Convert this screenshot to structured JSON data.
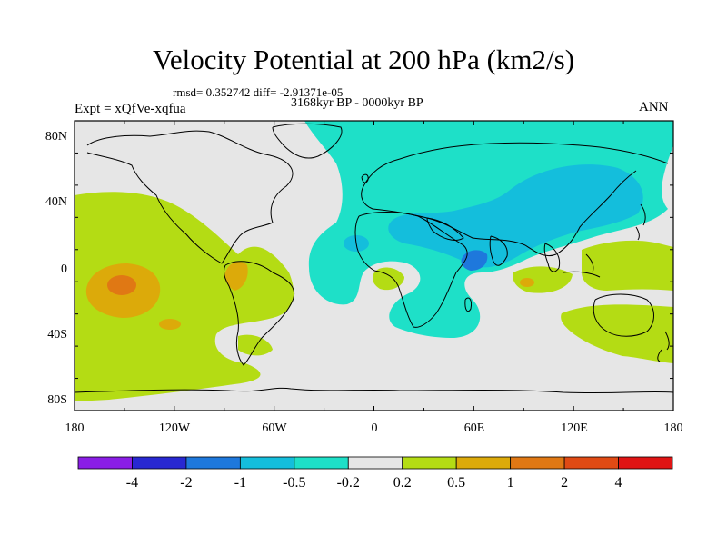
{
  "title": "Velocity Potential at 200 hPa (km2/s)",
  "stats": "rmsd= 0.352742 diff= -2.91371e-05",
  "period": "3168kyr BP - 0000kyr BP",
  "experiment": "Expt = xQfVe-xqfua",
  "season": "ANN",
  "map": {
    "projection": "cylindrical-equidistant",
    "lon_range": [
      -180,
      180
    ],
    "lat_range": [
      -90,
      90
    ],
    "y_tick_labels": [
      "80N",
      "40N",
      "0",
      "40S",
      "80S"
    ],
    "x_tick_labels": [
      "180",
      "120W",
      "60W",
      "0",
      "60E",
      "120E",
      "180"
    ]
  },
  "colorbar": {
    "labels": [
      "-4",
      "-2",
      "-1",
      "-0.5",
      "-0.2",
      "0.2",
      "0.5",
      "1",
      "2",
      "4"
    ],
    "colors": [
      "#8a1ee6",
      "#2828d2",
      "#1e78dc",
      "#14bedc",
      "#1ee0c8",
      "#e6e6e6",
      "#b4dc14",
      "#dcaa0a",
      "#e07814",
      "#e04a14",
      "#e01414"
    ]
  },
  "colors": {
    "neutral": "#e6e6e6",
    "positive_small": "#b4dc14",
    "positive_mid": "#dcaa0a",
    "positive_high": "#e07814",
    "negative_small": "#1ee0c8",
    "negative_mid": "#14bedc",
    "negative_high": "#1e78dc",
    "coast": "#000000"
  }
}
